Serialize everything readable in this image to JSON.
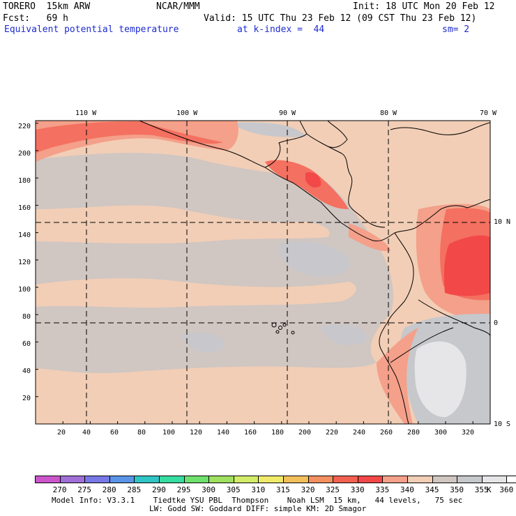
{
  "header": {
    "model": "TORERO  15km ARW",
    "center": "NCAR/MMM",
    "init": "Init: 18 UTC Mon 20 Feb 12",
    "fcst": "Fcst:   69 h",
    "valid": "Valid: 15 UTC Thu 23 Feb 12 (09 CST Thu 23 Feb 12)",
    "field": "Equivalent potential temperature",
    "level": "at k-index =  44",
    "smooth": "sm= 2"
  },
  "map": {
    "lon_labels": [
      "110 W",
      "100 W",
      "90 W",
      "80 W",
      "70 W"
    ],
    "lat_labels": [
      "10 N",
      "0",
      "10 S"
    ],
    "y_axis_ticks": [
      "220",
      "200",
      "180",
      "160",
      "140",
      "120",
      "100",
      "80",
      "60",
      "40",
      "20"
    ],
    "x_axis_ticks": [
      "20",
      "40",
      "60",
      "80",
      "100",
      "120",
      "140",
      "160",
      "180",
      "200",
      "220",
      "240",
      "260",
      "280",
      "300",
      "320"
    ]
  },
  "colorbar": {
    "labels": [
      "270",
      "275",
      "280",
      "285",
      "290",
      "295",
      "300",
      "305",
      "310",
      "315",
      "320",
      "325",
      "330",
      "335",
      "340",
      "345",
      "350",
      "355",
      "360"
    ],
    "unit": "K",
    "colors": [
      "#cc55cc",
      "#a070d8",
      "#7878e6",
      "#5a94e6",
      "#30c4c4",
      "#36dca0",
      "#6ee06e",
      "#a0e060",
      "#d2ec6a",
      "#f0ea6a",
      "#f2c05a",
      "#f29060",
      "#f26050",
      "#f24848",
      "#f4a08a",
      "#f2ceb6",
      "#d0c6c2",
      "#c6c8cc",
      "#e6e6e8",
      "#ffffff"
    ]
  },
  "field_colors": {
    "c330": "#f24848",
    "c335": "#f47060",
    "c340": "#f4a08a",
    "c345": "#f2ceb6",
    "c350": "#d0c6c2",
    "c355": "#c8c8cc",
    "c360": "#e6e6e8"
  },
  "footer": {
    "line1": "Model Info: V3.3.1    Tiedtke YSU PBL  Thompson    Noah LSM  15 km,   44 levels,   75 sec",
    "line2": "LW: Godd SW: Goddard DIFF: simple KM: 2D Smagor"
  }
}
